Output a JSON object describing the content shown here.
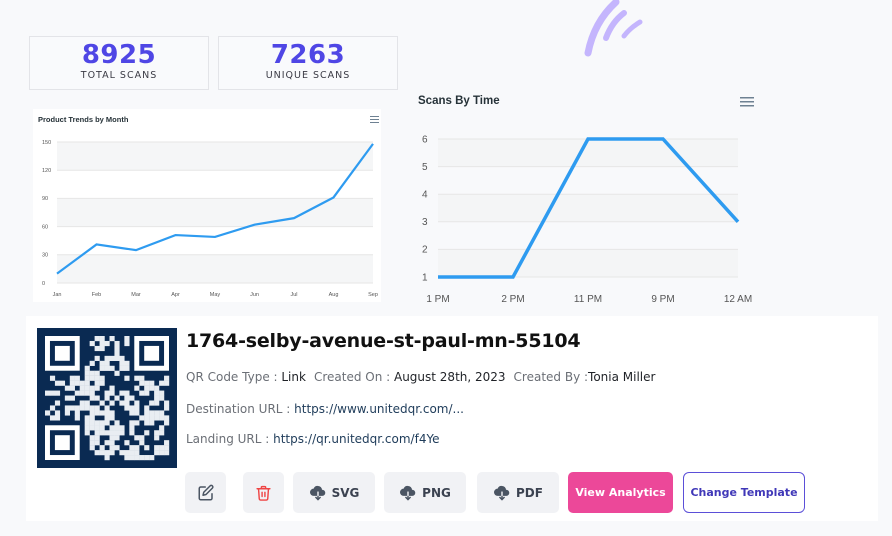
{
  "stats": {
    "total": {
      "value": "8925",
      "label": "TOTAL SCANS"
    },
    "unique": {
      "value": "7263",
      "label": "UNIQUE SCANS"
    }
  },
  "colors": {
    "accent": "#4f46e5",
    "line": "#2e9bf0",
    "analytics_button": "#ec4899",
    "template_border": "#5b4fd8",
    "qr_background": "#0a2a52",
    "delete_icon": "#ef4444"
  },
  "icons": {
    "logo": "wifi-signal-logo",
    "chart_menu": "hamburger-menu-icon",
    "edit": "pencil-square-icon",
    "delete": "trash-icon",
    "download": "cloud-download-icon"
  },
  "chart_data": [
    {
      "type": "line",
      "title": "Product Trends by Month",
      "categories": [
        "Jan",
        "Feb",
        "Mar",
        "Apr",
        "May",
        "Jun",
        "Jul",
        "Aug",
        "Sep"
      ],
      "values": [
        10,
        41,
        35,
        51,
        49,
        62,
        69,
        91,
        148
      ],
      "xlabel": "",
      "ylabel": "",
      "yticks": [
        0,
        30,
        60,
        90,
        120,
        150
      ],
      "ylim": [
        0,
        150
      ],
      "grid": true
    },
    {
      "type": "line",
      "title": "Scans By Time",
      "categories": [
        "1 PM",
        "2 PM",
        "11 PM",
        "9 PM",
        "12 AM"
      ],
      "values": [
        1,
        1,
        6,
        6,
        3
      ],
      "xlabel": "",
      "ylabel": "",
      "yticks": [
        1,
        2,
        3,
        4,
        5,
        6
      ],
      "ylim": [
        1,
        6
      ],
      "grid": true
    }
  ],
  "qr": {
    "title": "1764-selby-avenue-st-paul-mn-55104",
    "type_label": "QR Code Type : ",
    "type_value": "Link",
    "created_on_label": "Created On : ",
    "created_on_value": "August 28th, 2023",
    "created_by_label": "Created By :",
    "created_by_value": "Tonia Miller",
    "destination_label": "Destination URL : ",
    "destination_value": "https://www.unitedqr.com/...",
    "landing_label": "Landing URL : ",
    "landing_value": "https://qr.unitedqr.com/f4Ye"
  },
  "actions": {
    "svg": "SVG",
    "png": "PNG",
    "pdf": "PDF",
    "view_analytics": "View Analytics",
    "change_template": "Change Template"
  }
}
